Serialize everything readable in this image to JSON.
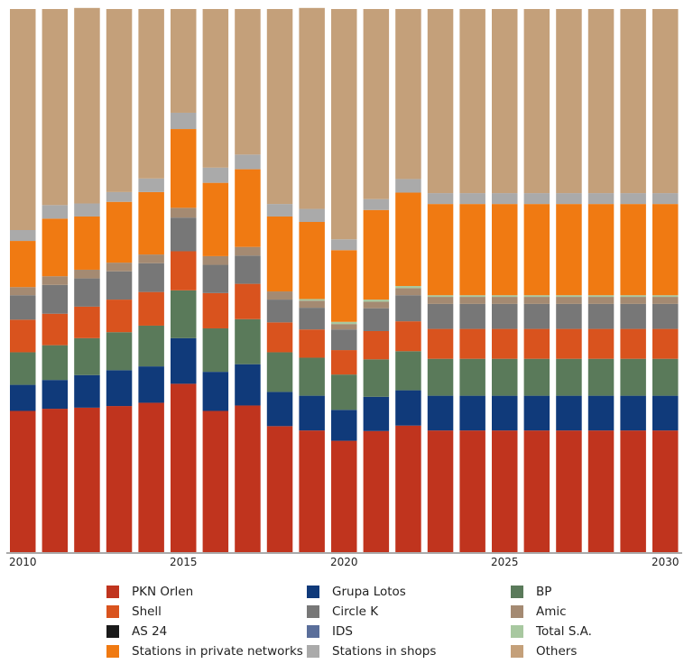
{
  "chart_data": {
    "type": "bar",
    "stacked": true,
    "normalized": true,
    "title": "",
    "xlabel": "",
    "ylabel": "",
    "ylim": [
      0,
      100
    ],
    "grid": false,
    "legend_position": "bottom",
    "categories": [
      "2010",
      "2011",
      "2012",
      "2013",
      "2014",
      "2015",
      "2016",
      "2017",
      "2018",
      "2019",
      "2020",
      "2021",
      "2022",
      "2023",
      "2024",
      "2025",
      "2026",
      "2027",
      "2028",
      "2029",
      "2030"
    ],
    "x_tick_labels": [
      "2010",
      "2015",
      "2020",
      "2025",
      "2030"
    ],
    "series": [
      {
        "name": "PKN Orlen",
        "color": "#c0341e",
        "values": [
          26.0,
          26.4,
          26.6,
          26.9,
          27.5,
          31.0,
          26.0,
          27.0,
          23.2,
          22.4,
          20.5,
          22.3,
          23.3,
          22.4,
          22.4,
          22.4,
          22.4,
          22.4,
          22.4,
          22.4,
          22.4
        ]
      },
      {
        "name": "Grupa Lotos",
        "color": "#103a7a",
        "values": [
          4.8,
          5.3,
          6.0,
          6.6,
          6.7,
          8.4,
          7.2,
          7.6,
          6.3,
          6.4,
          5.7,
          6.3,
          6.5,
          6.4,
          6.4,
          6.4,
          6.4,
          6.4,
          6.4,
          6.4,
          6.4
        ]
      },
      {
        "name": "BP",
        "color": "#5a7a5a",
        "values": [
          6.0,
          6.4,
          6.8,
          7.0,
          7.5,
          8.8,
          8.0,
          8.3,
          7.3,
          7.0,
          6.5,
          6.9,
          7.2,
          6.8,
          6.8,
          6.8,
          6.8,
          6.8,
          6.8,
          6.8,
          6.8
        ]
      },
      {
        "name": "Shell",
        "color": "#d9531e",
        "values": [
          6.0,
          5.8,
          5.8,
          6.0,
          6.2,
          7.2,
          6.5,
          6.5,
          5.5,
          5.2,
          4.5,
          5.2,
          5.5,
          5.5,
          5.5,
          5.5,
          5.5,
          5.5,
          5.5,
          5.5,
          5.5
        ]
      },
      {
        "name": "Circle K",
        "color": "#777777",
        "values": [
          4.5,
          5.3,
          5.2,
          5.2,
          5.3,
          6.2,
          5.2,
          5.2,
          4.2,
          4.0,
          3.8,
          4.2,
          4.8,
          4.6,
          4.6,
          4.6,
          4.6,
          4.6,
          4.6,
          4.6,
          4.6
        ]
      },
      {
        "name": "Amic",
        "color": "#a48a72",
        "values": [
          1.5,
          1.6,
          1.6,
          1.6,
          1.6,
          1.8,
          1.6,
          1.6,
          1.5,
          1.3,
          1.0,
          1.2,
          1.3,
          1.3,
          1.3,
          1.3,
          1.3,
          1.3,
          1.3,
          1.3,
          1.3
        ]
      },
      {
        "name": "AS 24",
        "color": "#1a1a1a",
        "values": [
          0,
          0,
          0,
          0,
          0,
          0,
          0,
          0,
          0,
          0,
          0,
          0,
          0,
          0,
          0,
          0,
          0,
          0,
          0,
          0,
          0
        ]
      },
      {
        "name": "IDS",
        "color": "#5a6e9a",
        "values": [
          0,
          0,
          0,
          0,
          0,
          0,
          0,
          0,
          0,
          0,
          0,
          0,
          0,
          0,
          0,
          0,
          0,
          0,
          0,
          0,
          0
        ]
      },
      {
        "name": "Total S.A.",
        "color": "#a8c8a0",
        "values": [
          0,
          0,
          0,
          0,
          0,
          0,
          0,
          0,
          0,
          0.3,
          0.4,
          0.4,
          0.4,
          0.3,
          0.3,
          0.3,
          0.3,
          0.3,
          0.3,
          0.3,
          0.3
        ]
      },
      {
        "name": "Stations in private networks",
        "color": "#f07a12",
        "values": [
          8.5,
          10.6,
          9.8,
          11.2,
          11.5,
          14.5,
          13.5,
          14.3,
          13.8,
          14.2,
          13.2,
          16.5,
          17.2,
          16.8,
          16.8,
          16.8,
          16.8,
          16.8,
          16.8,
          16.8,
          16.8
        ]
      },
      {
        "name": "Stations in shops",
        "color": "#aaaaaa",
        "values": [
          2.0,
          2.5,
          2.4,
          1.8,
          2.5,
          3.0,
          2.8,
          2.7,
          2.3,
          2.4,
          2.0,
          2.0,
          2.5,
          2.0,
          2.0,
          2.0,
          2.0,
          2.0,
          2.0,
          2.0,
          2.0
        ]
      },
      {
        "name": "Others",
        "color": "#c4a07a",
        "values": [
          40.7,
          36.1,
          36.0,
          33.7,
          31.2,
          19.1,
          29.2,
          26.8,
          35.9,
          37.0,
          42.4,
          35.0,
          31.3,
          33.9,
          33.9,
          33.9,
          33.9,
          33.9,
          33.9,
          33.9,
          33.9
        ]
      }
    ],
    "legend_order": [
      "PKN Orlen",
      "Grupa Lotos",
      "BP",
      "Shell",
      "Circle K",
      "Amic",
      "AS 24",
      "IDS",
      "Total S.A.",
      "Stations in private networks",
      "Stations in shops",
      "Others"
    ]
  }
}
